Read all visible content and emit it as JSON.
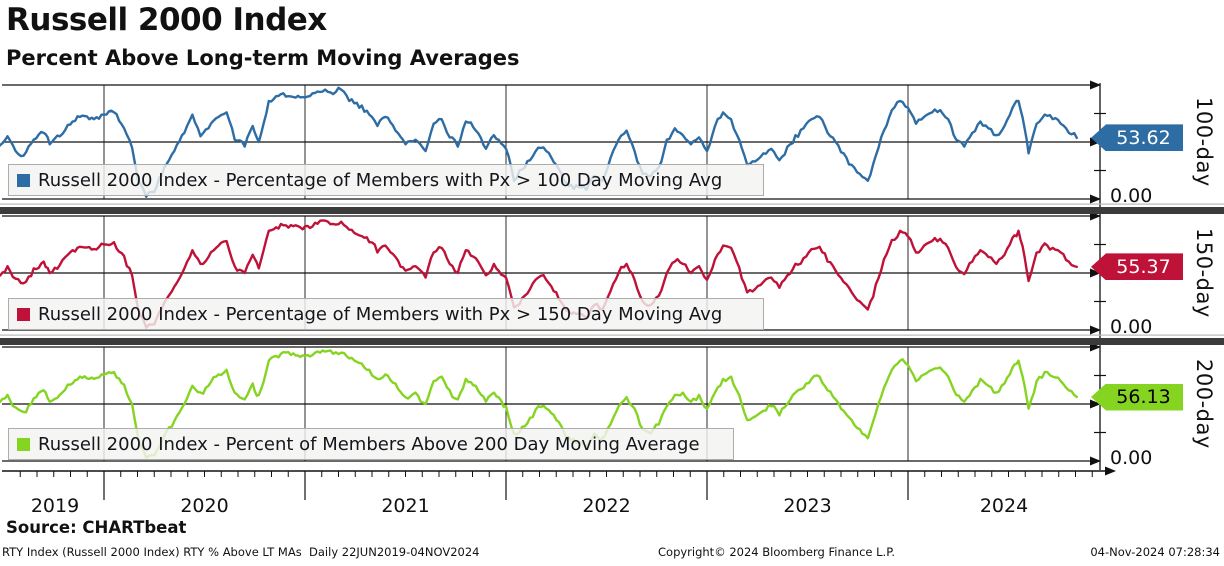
{
  "header": {
    "title": "Russell 2000 Index",
    "subtitle": "Percent Above Long-term Moving Averages"
  },
  "footer": {
    "source": "Source: CHARTbeat",
    "left": "RTY Index (Russell 2000 Index) RTY % Above LT MAs  Daily 22JUN2019-04NOV2024",
    "center": "Copyright© 2024 Bloomberg Finance L.P.",
    "right": "04-Nov-2024 07:28:34"
  },
  "chart_data": {
    "type": "line",
    "x_unit": "year-fraction",
    "x_range": [
      2019.47,
      2024.84
    ],
    "grid": "on",
    "year_boundaries": [
      2020,
      2021,
      2022,
      2023,
      2024
    ],
    "year_labels": [
      "2019",
      "2020",
      "2021",
      "2022",
      "2023",
      "2024"
    ],
    "ylim": [
      0,
      100
    ],
    "x": [
      2019.47,
      2019.52,
      2019.56,
      2019.6,
      2019.65,
      2019.7,
      2019.73,
      2019.78,
      2019.82,
      2019.88,
      2019.95,
      2020.0,
      2020.05,
      2020.1,
      2020.14,
      2020.17,
      2020.21,
      2020.25,
      2020.3,
      2020.35,
      2020.4,
      2020.44,
      2020.48,
      2020.52,
      2020.57,
      2020.61,
      2020.65,
      2020.7,
      2020.74,
      2020.77,
      2020.82,
      2020.88,
      2020.93,
      2021.0,
      2021.05,
      2021.1,
      2021.14,
      2021.18,
      2021.22,
      2021.27,
      2021.32,
      2021.36,
      2021.4,
      2021.45,
      2021.5,
      2021.55,
      2021.6,
      2021.64,
      2021.68,
      2021.72,
      2021.76,
      2021.8,
      2021.85,
      2021.9,
      2021.94,
      2022.0,
      2022.04,
      2022.08,
      2022.12,
      2022.16,
      2022.2,
      2022.25,
      2022.3,
      2022.35,
      2022.4,
      2022.44,
      2022.48,
      2022.52,
      2022.56,
      2022.6,
      2022.64,
      2022.68,
      2022.72,
      2022.76,
      2022.8,
      2022.84,
      2022.88,
      2022.92,
      2022.96,
      2023.0,
      2023.04,
      2023.08,
      2023.12,
      2023.16,
      2023.2,
      2023.24,
      2023.28,
      2023.32,
      2023.36,
      2023.4,
      2023.44,
      2023.48,
      2023.52,
      2023.56,
      2023.6,
      2023.64,
      2023.68,
      2023.72,
      2023.76,
      2023.8,
      2023.84,
      2023.88,
      2023.92,
      2023.96,
      2024.0,
      2024.04,
      2024.08,
      2024.12,
      2024.16,
      2024.2,
      2024.24,
      2024.28,
      2024.32,
      2024.36,
      2024.4,
      2024.44,
      2024.48,
      2024.52,
      2024.55,
      2024.58,
      2024.6,
      2024.64,
      2024.68,
      2024.72,
      2024.76,
      2024.8,
      2024.84
    ],
    "panels": [
      {
        "id": "ma-100-day",
        "side_label": "100-day",
        "zero_label": "0.00",
        "last_value": 53.62,
        "last_label": "53.62",
        "color": "#2e6da4",
        "value_text_color": "#ffffff",
        "legend": "Russell 2000 Index - Percentage of Members with Px > 100 Day Moving Avg",
        "values": [
          44,
          55,
          42,
          38,
          52,
          58,
          48,
          55,
          65,
          72,
          70,
          74,
          76,
          62,
          45,
          15,
          2,
          6,
          28,
          42,
          58,
          74,
          55,
          62,
          72,
          76,
          52,
          46,
          64,
          50,
          86,
          92,
          90,
          89,
          93,
          96,
          92,
          96,
          86,
          80,
          74,
          64,
          72,
          60,
          48,
          52,
          42,
          66,
          70,
          54,
          46,
          68,
          60,
          44,
          56,
          44,
          16,
          26,
          34,
          45,
          42,
          30,
          14,
          12,
          8,
          20,
          16,
          36,
          52,
          60,
          42,
          22,
          20,
          28,
          52,
          62,
          56,
          48,
          54,
          42,
          64,
          76,
          70,
          52,
          30,
          33,
          40,
          44,
          34,
          46,
          56,
          62,
          70,
          72,
          58,
          50,
          40,
          30,
          22,
          16,
          38,
          60,
          78,
          86,
          80,
          66,
          72,
          76,
          78,
          70,
          52,
          46,
          58,
          68,
          62,
          56,
          64,
          80,
          86,
          62,
          40,
          66,
          74,
          70,
          66,
          58,
          53.62
        ]
      },
      {
        "id": "ma-150-day",
        "side_label": "150-day",
        "zero_label": "0.00",
        "last_value": 55.37,
        "last_label": "55.37",
        "color": "#bf1238",
        "value_text_color": "#ffffff",
        "legend": "Russell 2000 Index - Percentage of Members with Px > 150 Day Moving Avg",
        "values": [
          47,
          56,
          45,
          41,
          54,
          60,
          50,
          57,
          66,
          73,
          71,
          75,
          77,
          65,
          48,
          18,
          2,
          5,
          24,
          38,
          54,
          70,
          58,
          64,
          74,
          78,
          56,
          50,
          66,
          54,
          87,
          93,
          92,
          91,
          94,
          96,
          93,
          95,
          88,
          83,
          77,
          68,
          74,
          64,
          52,
          56,
          46,
          68,
          72,
          58,
          50,
          70,
          63,
          48,
          58,
          46,
          20,
          28,
          36,
          46,
          44,
          33,
          17,
          14,
          10,
          22,
          18,
          34,
          50,
          58,
          44,
          25,
          22,
          30,
          50,
          60,
          58,
          50,
          56,
          44,
          62,
          74,
          72,
          55,
          33,
          36,
          42,
          46,
          37,
          48,
          58,
          63,
          71,
          73,
          60,
          52,
          42,
          33,
          25,
          18,
          40,
          62,
          79,
          87,
          82,
          68,
          74,
          78,
          80,
          72,
          55,
          49,
          60,
          70,
          64,
          58,
          66,
          81,
          87,
          64,
          43,
          68,
          76,
          72,
          68,
          60,
          55.37
        ]
      },
      {
        "id": "ma-200-day",
        "side_label": "200-day",
        "zero_label": "0.00",
        "last_value": 56.13,
        "last_label": "56.13",
        "color": "#86d422",
        "value_text_color": "#000000",
        "legend": "Russell 2000 Index - Percent of Members Above 200 Day Moving Average",
        "values": [
          50,
          58,
          47,
          43,
          55,
          62,
          52,
          58,
          67,
          74,
          72,
          76,
          78,
          67,
          50,
          20,
          3,
          5,
          22,
          35,
          50,
          66,
          60,
          66,
          76,
          80,
          60,
          54,
          68,
          58,
          88,
          94,
          93,
          92,
          95,
          96,
          94,
          95,
          90,
          86,
          80,
          72,
          76,
          68,
          56,
          60,
          50,
          70,
          74,
          62,
          54,
          72,
          66,
          52,
          60,
          48,
          24,
          30,
          38,
          48,
          46,
          36,
          20,
          16,
          12,
          24,
          20,
          32,
          48,
          56,
          46,
          28,
          24,
          32,
          48,
          58,
          60,
          52,
          58,
          46,
          60,
          72,
          74,
          58,
          36,
          39,
          44,
          48,
          40,
          50,
          60,
          64,
          72,
          74,
          62,
          54,
          44,
          36,
          28,
          20,
          42,
          64,
          80,
          88,
          84,
          70,
          76,
          80,
          82,
          74,
          58,
          52,
          62,
          72,
          66,
          60,
          68,
          82,
          88,
          66,
          46,
          70,
          78,
          74,
          70,
          62,
          56.13
        ]
      }
    ]
  }
}
